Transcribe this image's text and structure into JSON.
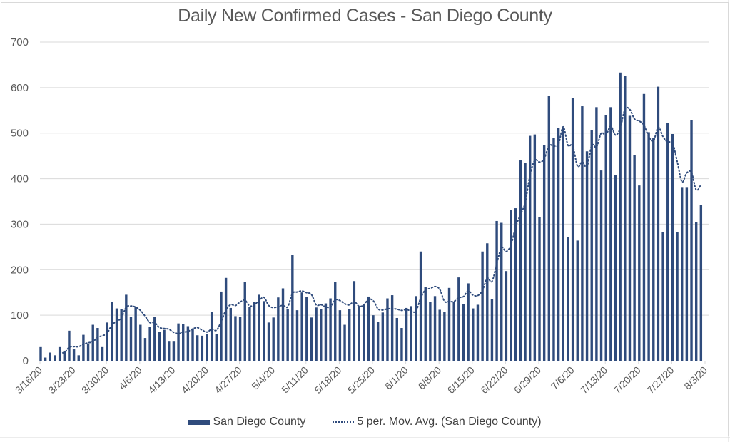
{
  "chart_data": {
    "type": "bar",
    "title": "Daily New Confirmed Cases - San Diego County",
    "xlabel": "",
    "ylabel": "",
    "ylim": [
      0,
      700
    ],
    "yticks": [
      0,
      100,
      200,
      300,
      400,
      500,
      600,
      700
    ],
    "grid": true,
    "legend_position": "bottom",
    "start_date": "3/16/20",
    "xtick_labels": [
      "3/16/20",
      "3/23/20",
      "3/30/20",
      "4/6/20",
      "4/13/20",
      "4/20/20",
      "4/27/20",
      "5/4/20",
      "5/11/20",
      "5/18/20",
      "5/25/20",
      "6/1/20",
      "6/8/20",
      "6/15/20",
      "6/22/20",
      "6/29/20",
      "7/6/20",
      "7/13/20",
      "7/20/20",
      "7/27/20",
      "8/3/20"
    ],
    "series": [
      {
        "name": "San Diego County",
        "type": "bar",
        "color": "#2f4b7c",
        "values": [
          30,
          7,
          18,
          12,
          30,
          22,
          66,
          25,
          12,
          57,
          37,
          79,
          72,
          30,
          84,
          130,
          115,
          114,
          145,
          97,
          118,
          79,
          50,
          75,
          97,
          64,
          68,
          42,
          42,
          82,
          80,
          76,
          70,
          56,
          55,
          58,
          108,
          58,
          152,
          182,
          116,
          98,
          97,
          173,
          118,
          129,
          145,
          131,
          84,
          95,
          139,
          159,
          114,
          232,
          111,
          150,
          140,
          95,
          117,
          114,
          126,
          137,
          173,
          111,
          79,
          114,
          175,
          120,
          124,
          141,
          100,
          86,
          106,
          137,
          144,
          94,
          72,
          116,
          120,
          142,
          240,
          162,
          129,
          142,
          112,
          108,
          160,
          129,
          183,
          125,
          170,
          115,
          123,
          240,
          258,
          135,
          307,
          303,
          197,
          331,
          335,
          440,
          435,
          494,
          497,
          316,
          474,
          582,
          489,
          512,
          512,
          272,
          577,
          264,
          559,
          460,
          506,
          557,
          418,
          539,
          557,
          408,
          633,
          625,
          538,
          452,
          385,
          586,
          502,
          490,
          602,
          282,
          523,
          498,
          282,
          380,
          380,
          528,
          305,
          342
        ]
      },
      {
        "name": "5 per. Mov. Avg. (San Diego County)",
        "type": "line",
        "style": "dotted",
        "color": "#2f4b7c",
        "period": 5
      }
    ]
  },
  "legend": {
    "bar_label": "San Diego County",
    "line_label": "5 per. Mov. Avg. (San Diego County)"
  }
}
